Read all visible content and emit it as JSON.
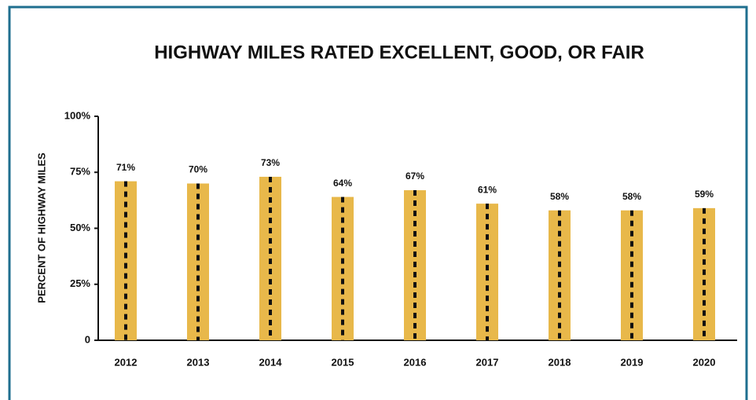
{
  "chart_data": {
    "type": "bar",
    "title": "HIGHWAY MILES RATED EXCELLENT, GOOD, OR FAIR",
    "y_label": "PERCENT OF HIGHWAY MILES",
    "categories": [
      "2012",
      "2013",
      "2014",
      "2015",
      "2016",
      "2017",
      "2018",
      "2019",
      "2020"
    ],
    "values": [
      71,
      70,
      73,
      64,
      67,
      61,
      58,
      58,
      59
    ],
    "value_labels": [
      "71%",
      "70%",
      "73%",
      "64%",
      "67%",
      "61%",
      "58%",
      "58%",
      "59%"
    ],
    "color": "#e8b84a",
    "ylim": [
      0,
      100
    ],
    "yticks": [
      0,
      {
        "value": 25,
        "label": "25%"
      },
      {
        "value": 50,
        "label": "50%"
      },
      {
        "value": 75,
        "label": "75%"
      },
      {
        "value": 100,
        "label": "100%"
      }
    ],
    "grid": false
  }
}
